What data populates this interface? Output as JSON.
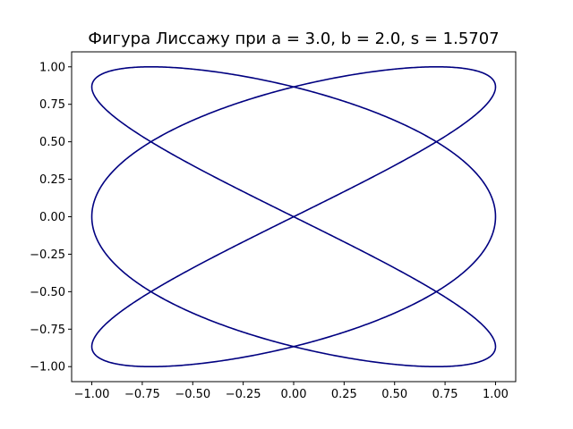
{
  "chart_data": {
    "type": "line",
    "title": "Фигура Лиссажу при a = 3.0, b = 2.0, s = 1.5707",
    "xlabel": "",
    "ylabel": "",
    "xlim": [
      -1.1,
      1.1
    ],
    "ylim": [
      -1.1,
      1.1
    ],
    "grid": false,
    "legend": "none",
    "x_ticks": [
      -1.0,
      -0.75,
      -0.5,
      -0.25,
      0.0,
      0.25,
      0.5,
      0.75,
      1.0
    ],
    "x_tick_labels": [
      "−1.00",
      "−0.75",
      "−0.50",
      "−0.25",
      "0.00",
      "0.25",
      "0.50",
      "0.75",
      "1.00"
    ],
    "y_ticks": [
      -1.0,
      -0.75,
      -0.5,
      -0.25,
      0.0,
      0.25,
      0.5,
      0.75,
      1.0
    ],
    "y_tick_labels": [
      "−1.00",
      "−0.75",
      "−0.50",
      "−0.25",
      "0.00",
      "0.25",
      "0.50",
      "0.75",
      "1.00"
    ],
    "series": [
      {
        "color": "#000080",
        "parametric": {
          "x": "sin(a*t + s)",
          "y": "sin(b*t)",
          "a": 3.0,
          "b": 2.0,
          "s": 1.5707,
          "t_range": [
            0,
            6.2832
          ]
        }
      }
    ]
  }
}
